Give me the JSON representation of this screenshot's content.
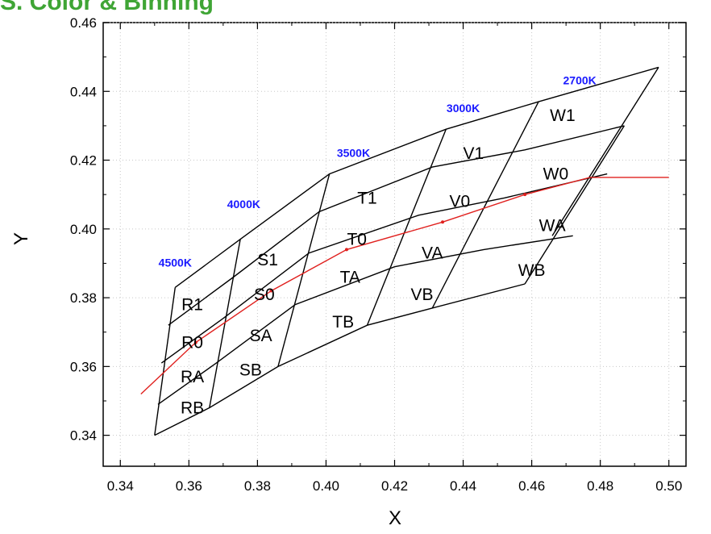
{
  "banner": {
    "text": "S. Color & Binning"
  },
  "chart_data": {
    "type": "line",
    "xlabel": "X",
    "ylabel": "Y",
    "xlim": [
      0.335,
      0.505
    ],
    "ylim": [
      0.331,
      0.46
    ],
    "x_ticks": [
      "0.34",
      "0.36",
      "0.38",
      "0.40",
      "0.42",
      "0.44",
      "0.46",
      "0.48",
      "0.50"
    ],
    "y_ticks": [
      "0.34",
      "0.36",
      "0.38",
      "0.40",
      "0.42",
      "0.44",
      "0.46"
    ],
    "grid": "dotted",
    "black_body_locus": {
      "color": "#e0201e",
      "points": [
        [
          0.346,
          0.352
        ],
        [
          0.362,
          0.367
        ],
        [
          0.384,
          0.382
        ],
        [
          0.406,
          0.394
        ],
        [
          0.434,
          0.402
        ],
        [
          0.458,
          0.41
        ],
        [
          0.477,
          0.415
        ],
        [
          0.5,
          0.415
        ]
      ]
    },
    "cct_isotherms": [
      {
        "label": "4500K",
        "line": [
          [
            0.35,
            0.34
          ],
          [
            0.356,
            0.383
          ]
        ]
      },
      {
        "label": "4000K",
        "line": [
          [
            0.366,
            0.348
          ],
          [
            0.375,
            0.397
          ]
        ]
      },
      {
        "label": "3500K",
        "line": [
          [
            0.386,
            0.36
          ],
          [
            0.401,
            0.416
          ]
        ]
      },
      {
        "label": "3000K",
        "line": [
          [
            0.412,
            0.372
          ],
          [
            0.435,
            0.429
          ]
        ]
      },
      {
        "label": "2700K",
        "line": [
          [
            0.431,
            0.377
          ],
          [
            0.462,
            0.437
          ]
        ]
      },
      {
        "label": "",
        "line": [
          [
            0.458,
            0.384
          ],
          [
            0.487,
            0.43
          ]
        ]
      },
      {
        "label": "",
        "line": [
          [
            0.466,
            0.398
          ],
          [
            0.497,
            0.447
          ]
        ]
      }
    ],
    "cct_label_positions": [
      [
        0.356,
        0.389
      ],
      [
        0.376,
        0.406
      ],
      [
        0.408,
        0.421
      ],
      [
        0.44,
        0.434
      ],
      [
        0.474,
        0.442
      ]
    ],
    "bin_boundaries": [
      [
        [
          0.356,
          0.383
        ],
        [
          0.375,
          0.397
        ],
        [
          0.401,
          0.416
        ],
        [
          0.435,
          0.429
        ],
        [
          0.462,
          0.437
        ],
        [
          0.497,
          0.447
        ]
      ],
      [
        [
          0.354,
          0.372
        ],
        [
          0.373,
          0.386
        ],
        [
          0.398,
          0.405
        ],
        [
          0.431,
          0.418
        ],
        [
          0.458,
          0.423
        ],
        [
          0.487,
          0.43
        ]
      ],
      [
        [
          0.352,
          0.361
        ],
        [
          0.37,
          0.374
        ],
        [
          0.395,
          0.393
        ],
        [
          0.427,
          0.404
        ],
        [
          0.452,
          0.409
        ],
        [
          0.482,
          0.416
        ]
      ],
      [
        [
          0.351,
          0.349
        ],
        [
          0.368,
          0.361
        ],
        [
          0.391,
          0.378
        ],
        [
          0.42,
          0.389
        ],
        [
          0.446,
          0.394
        ],
        [
          0.472,
          0.398
        ]
      ],
      [
        [
          0.35,
          0.34
        ],
        [
          0.366,
          0.348
        ],
        [
          0.386,
          0.36
        ],
        [
          0.412,
          0.372
        ],
        [
          0.431,
          0.377
        ],
        [
          0.458,
          0.384
        ]
      ]
    ],
    "bins": [
      {
        "label": "R1",
        "x": 0.361,
        "y": 0.378
      },
      {
        "label": "R0",
        "x": 0.361,
        "y": 0.367
      },
      {
        "label": "RA",
        "x": 0.361,
        "y": 0.357
      },
      {
        "label": "RB",
        "x": 0.361,
        "y": 0.348
      },
      {
        "label": "S1",
        "x": 0.383,
        "y": 0.391
      },
      {
        "label": "S0",
        "x": 0.382,
        "y": 0.381
      },
      {
        "label": "SA",
        "x": 0.381,
        "y": 0.369
      },
      {
        "label": "SB",
        "x": 0.378,
        "y": 0.359
      },
      {
        "label": "T1",
        "x": 0.412,
        "y": 0.409
      },
      {
        "label": "T0",
        "x": 0.409,
        "y": 0.397
      },
      {
        "label": "TA",
        "x": 0.407,
        "y": 0.386
      },
      {
        "label": "TB",
        "x": 0.405,
        "y": 0.373
      },
      {
        "label": "V1",
        "x": 0.443,
        "y": 0.422
      },
      {
        "label": "V0",
        "x": 0.439,
        "y": 0.408
      },
      {
        "label": "VA",
        "x": 0.431,
        "y": 0.393
      },
      {
        "label": "VB",
        "x": 0.428,
        "y": 0.381
      },
      {
        "label": "W1",
        "x": 0.469,
        "y": 0.433
      },
      {
        "label": "W0",
        "x": 0.467,
        "y": 0.416
      },
      {
        "label": "WA",
        "x": 0.466,
        "y": 0.401
      },
      {
        "label": "WB",
        "x": 0.46,
        "y": 0.388
      }
    ]
  }
}
